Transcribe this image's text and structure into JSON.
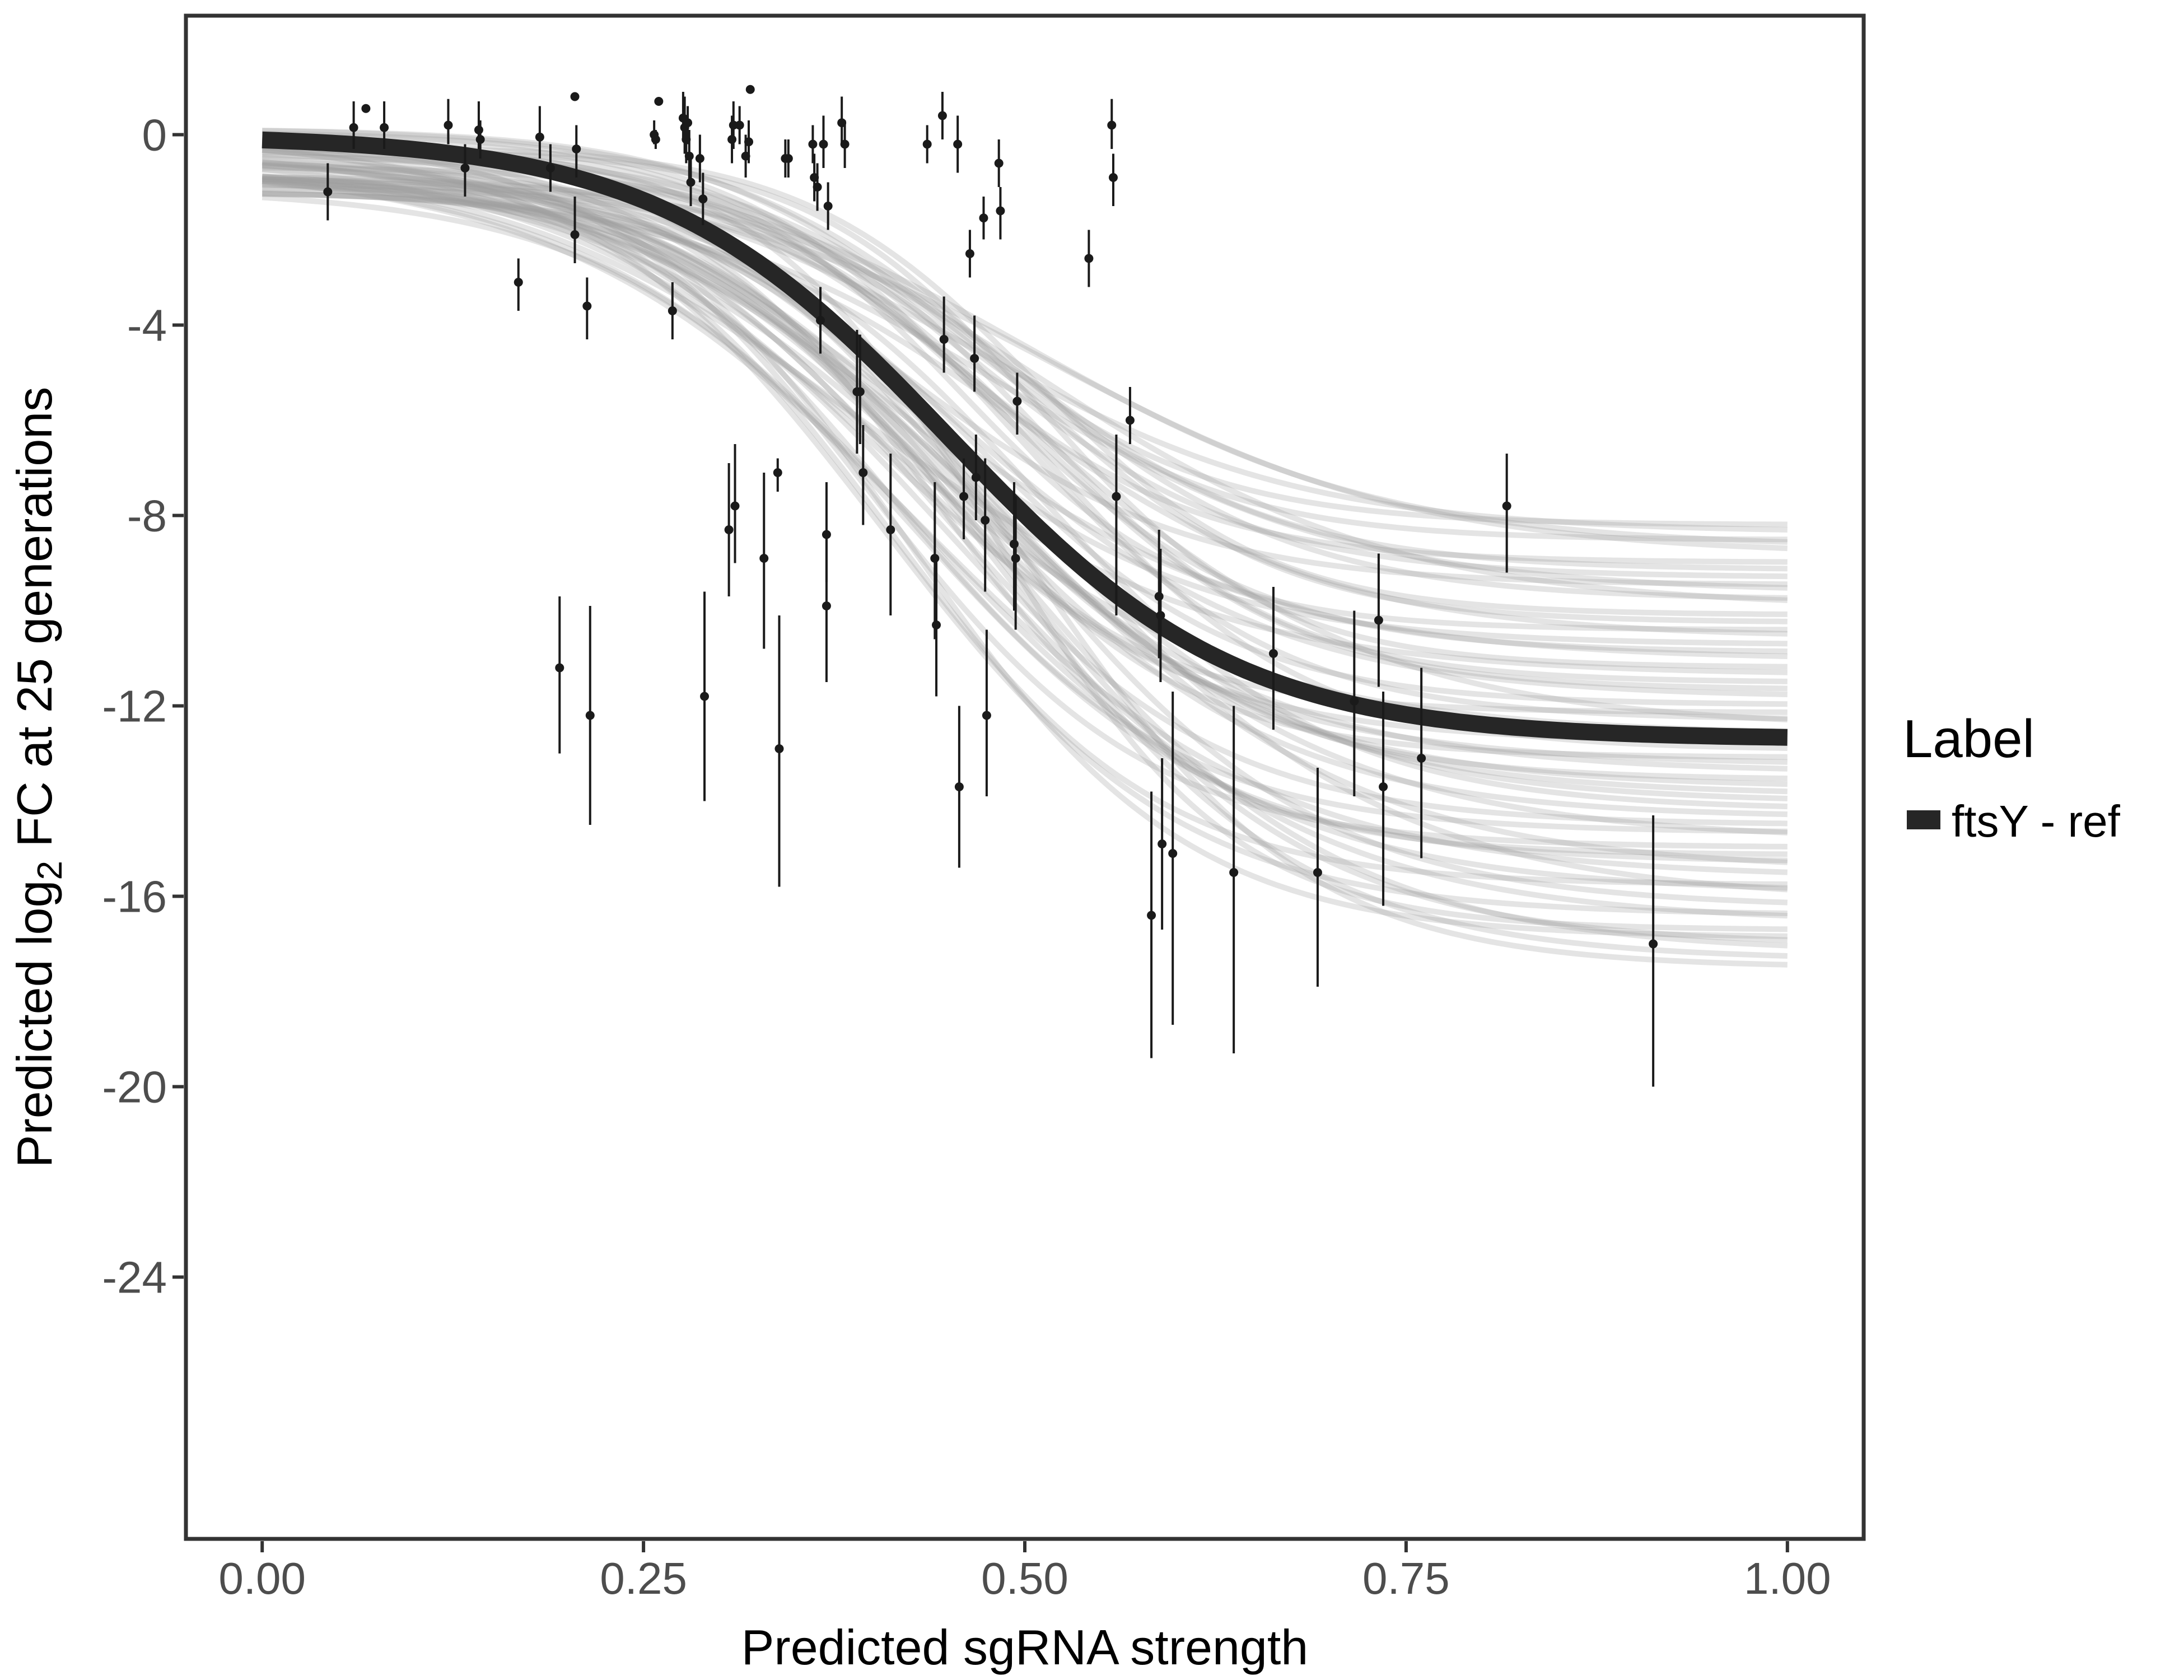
{
  "chart_data": {
    "type": "scatter",
    "xlabel": "Predicted sgRNA strength",
    "ylabel_parts": [
      "Predicted  log",
      "2",
      " FC at 25 generations"
    ],
    "xlim": [
      -0.05,
      1.05
    ],
    "ylim": [
      -29.5,
      2.5
    ],
    "x_ticks": [
      0,
      0.25,
      0.5,
      0.75,
      1
    ],
    "x_tick_labels": [
      "0.00",
      "0.25",
      "0.50",
      "0.75",
      "1.00"
    ],
    "y_ticks": [
      0,
      -4,
      -8,
      -12,
      -16,
      -20,
      -24
    ],
    "y_tick_labels": [
      "0",
      "-4",
      "-8",
      "-12",
      "-16",
      "-20",
      "-24"
    ],
    "grid": false,
    "legend": {
      "title": "Label",
      "position": "right",
      "entries": [
        {
          "label": "ftsY - ref",
          "color": "#262626"
        }
      ]
    },
    "fit_curve": {
      "name": "ftsY - ref",
      "model": "logistic",
      "lower": -12.7,
      "upper": 0,
      "midpoint": 0.45,
      "scale": 0.095,
      "color": "#262626"
    },
    "posterior_band": {
      "color": "#9e9e9e",
      "draws": 60,
      "lower_range": [
        -17.5,
        -8.2
      ],
      "upper_range": [
        -1.2,
        0.2
      ],
      "midpoint_range": [
        0.39,
        0.52
      ],
      "scale_range": [
        0.075,
        0.12
      ]
    },
    "points": [
      {
        "x": 0.043,
        "y": -1.2,
        "lo": -1.8,
        "hi": -0.6
      },
      {
        "x": 0.06,
        "y": 0.15,
        "lo": -0.3,
        "hi": 0.7
      },
      {
        "x": 0.068,
        "y": 0.55,
        "lo": 0.5,
        "hi": 0.6
      },
      {
        "x": 0.08,
        "y": 0.15,
        "lo": -0.3,
        "hi": 0.7
      },
      {
        "x": 0.122,
        "y": 0.2,
        "lo": -0.2,
        "hi": 0.75
      },
      {
        "x": 0.133,
        "y": -0.7,
        "lo": -1.3,
        "hi": -0.2
      },
      {
        "x": 0.142,
        "y": 0.1,
        "lo": -0.3,
        "hi": 0.7
      },
      {
        "x": 0.143,
        "y": -0.1,
        "lo": -0.5,
        "hi": 0.3
      },
      {
        "x": 0.168,
        "y": -3.1,
        "lo": -3.7,
        "hi": -2.6
      },
      {
        "x": 0.182,
        "y": -0.05,
        "lo": -0.5,
        "hi": 0.6
      },
      {
        "x": 0.189,
        "y": -0.7,
        "lo": -1.2,
        "hi": -0.2
      },
      {
        "x": 0.195,
        "y": -11.2,
        "lo": -13.0,
        "hi": -9.7
      },
      {
        "x": 0.205,
        "y": -2.1,
        "lo": -2.7,
        "hi": -1.3
      },
      {
        "x": 0.205,
        "y": 0.8,
        "lo": 0.75,
        "hi": 0.85
      },
      {
        "x": 0.206,
        "y": -0.3,
        "lo": -0.9,
        "hi": 0.2
      },
      {
        "x": 0.213,
        "y": -3.6,
        "lo": -4.3,
        "hi": -3.0
      },
      {
        "x": 0.215,
        "y": -12.2,
        "lo": -14.5,
        "hi": -9.9
      },
      {
        "x": 0.257,
        "y": 0.0,
        "lo": -0.2,
        "hi": 0.3
      },
      {
        "x": 0.258,
        "y": -0.1,
        "lo": -0.3,
        "hi": 0.1
      },
      {
        "x": 0.26,
        "y": 0.7,
        "lo": 0.65,
        "hi": 0.75
      },
      {
        "x": 0.269,
        "y": -3.7,
        "lo": -4.3,
        "hi": -3.1
      },
      {
        "x": 0.276,
        "y": 0.35,
        "lo": -0.1,
        "hi": 0.9
      },
      {
        "x": 0.277,
        "y": 0.15,
        "lo": -0.4,
        "hi": 0.8
      },
      {
        "x": 0.278,
        "y": -0.1,
        "lo": -0.6,
        "hi": 0.4
      },
      {
        "x": 0.279,
        "y": 0.25,
        "lo": -0.2,
        "hi": 0.6
      },
      {
        "x": 0.28,
        "y": -0.45,
        "lo": -1.0,
        "hi": 0.1
      },
      {
        "x": 0.281,
        "y": -1.0,
        "lo": -1.5,
        "hi": -0.5
      },
      {
        "x": 0.287,
        "y": -0.5,
        "lo": -1.0,
        "hi": 0.0
      },
      {
        "x": 0.289,
        "y": -1.35,
        "lo": -1.9,
        "hi": -0.8
      },
      {
        "x": 0.29,
        "y": -11.8,
        "lo": -14.0,
        "hi": -9.6
      },
      {
        "x": 0.306,
        "y": -8.3,
        "lo": -9.7,
        "hi": -6.9
      },
      {
        "x": 0.308,
        "y": -0.1,
        "lo": -0.6,
        "hi": 0.4
      },
      {
        "x": 0.309,
        "y": 0.2,
        "lo": -0.3,
        "hi": 0.7
      },
      {
        "x": 0.31,
        "y": -7.8,
        "lo": -9.0,
        "hi": -6.5
      },
      {
        "x": 0.313,
        "y": 0.2,
        "lo": -0.2,
        "hi": 0.6
      },
      {
        "x": 0.317,
        "y": -0.45,
        "lo": -0.9,
        "hi": 0.0
      },
      {
        "x": 0.319,
        "y": -0.15,
        "lo": -0.6,
        "hi": 0.3
      },
      {
        "x": 0.32,
        "y": 0.95,
        "lo": 0.9,
        "hi": 1.0
      },
      {
        "x": 0.329,
        "y": -8.9,
        "lo": -10.8,
        "hi": -7.1
      },
      {
        "x": 0.338,
        "y": -7.1,
        "lo": -7.5,
        "hi": -6.8
      },
      {
        "x": 0.339,
        "y": -12.9,
        "lo": -15.8,
        "hi": -10.1
      },
      {
        "x": 0.343,
        "y": -0.5,
        "lo": -0.9,
        "hi": -0.1
      },
      {
        "x": 0.345,
        "y": -0.5,
        "lo": -0.9,
        "hi": -0.1
      },
      {
        "x": 0.361,
        "y": -0.2,
        "lo": -0.6,
        "hi": 0.2
      },
      {
        "x": 0.362,
        "y": -0.9,
        "lo": -1.4,
        "hi": -0.4
      },
      {
        "x": 0.364,
        "y": -1.1,
        "lo": -1.6,
        "hi": -0.6
      },
      {
        "x": 0.366,
        "y": -3.9,
        "lo": -4.6,
        "hi": -3.2
      },
      {
        "x": 0.368,
        "y": -0.2,
        "lo": -0.7,
        "hi": 0.4
      },
      {
        "x": 0.37,
        "y": -8.4,
        "lo": -9.4,
        "hi": -7.3
      },
      {
        "x": 0.37,
        "y": -9.9,
        "lo": -11.5,
        "hi": -8.4
      },
      {
        "x": 0.371,
        "y": -1.5,
        "lo": -2.0,
        "hi": -1.0
      },
      {
        "x": 0.38,
        "y": 0.25,
        "lo": -0.2,
        "hi": 0.8
      },
      {
        "x": 0.382,
        "y": -0.2,
        "lo": -0.7,
        "hi": 0.3
      },
      {
        "x": 0.39,
        "y": -5.4,
        "lo": -6.7,
        "hi": -4.1
      },
      {
        "x": 0.392,
        "y": -5.4,
        "lo": -6.5,
        "hi": -4.2
      },
      {
        "x": 0.394,
        "y": -7.1,
        "lo": -8.2,
        "hi": -6.1
      },
      {
        "x": 0.412,
        "y": -8.3,
        "lo": -10.1,
        "hi": -6.7
      },
      {
        "x": 0.436,
        "y": -0.2,
        "lo": -0.6,
        "hi": 0.2
      },
      {
        "x": 0.441,
        "y": -8.9,
        "lo": -10.6,
        "hi": -7.3
      },
      {
        "x": 0.442,
        "y": -10.3,
        "lo": -11.8,
        "hi": -8.9
      },
      {
        "x": 0.446,
        "y": 0.4,
        "lo": -0.1,
        "hi": 0.9
      },
      {
        "x": 0.447,
        "y": -4.3,
        "lo": -5.0,
        "hi": -3.4
      },
      {
        "x": 0.456,
        "y": -0.2,
        "lo": -0.8,
        "hi": 0.4
      },
      {
        "x": 0.457,
        "y": -13.7,
        "lo": -15.4,
        "hi": -12.0
      },
      {
        "x": 0.46,
        "y": -7.6,
        "lo": -8.5,
        "hi": -6.8
      },
      {
        "x": 0.464,
        "y": -2.5,
        "lo": -3.0,
        "hi": -2.0
      },
      {
        "x": 0.467,
        "y": -4.7,
        "lo": -5.4,
        "hi": -3.8
      },
      {
        "x": 0.468,
        "y": -7.2,
        "lo": -8.1,
        "hi": -6.3
      },
      {
        "x": 0.473,
        "y": -1.75,
        "lo": -2.2,
        "hi": -1.3
      },
      {
        "x": 0.474,
        "y": -8.1,
        "lo": -9.6,
        "hi": -6.8
      },
      {
        "x": 0.475,
        "y": -12.2,
        "lo": -13.9,
        "hi": -10.4
      },
      {
        "x": 0.483,
        "y": -0.6,
        "lo": -1.1,
        "hi": -0.1
      },
      {
        "x": 0.484,
        "y": -1.6,
        "lo": -2.2,
        "hi": -1.1
      },
      {
        "x": 0.493,
        "y": -8.6,
        "lo": -10.0,
        "hi": -7.3
      },
      {
        "x": 0.494,
        "y": -8.9,
        "lo": -10.4,
        "hi": -7.6
      },
      {
        "x": 0.495,
        "y": -5.6,
        "lo": -6.3,
        "hi": -5.0
      },
      {
        "x": 0.542,
        "y": -2.6,
        "lo": -3.2,
        "hi": -2.0
      },
      {
        "x": 0.557,
        "y": 0.2,
        "lo": -0.3,
        "hi": 0.75
      },
      {
        "x": 0.558,
        "y": -0.9,
        "lo": -1.5,
        "hi": -0.4
      },
      {
        "x": 0.56,
        "y": -7.6,
        "lo": -10.1,
        "hi": -6.3
      },
      {
        "x": 0.569,
        "y": -6.0,
        "lo": -6.5,
        "hi": -5.3
      },
      {
        "x": 0.583,
        "y": -16.4,
        "lo": -19.4,
        "hi": -13.8
      },
      {
        "x": 0.588,
        "y": -9.7,
        "lo": -11.0,
        "hi": -8.3
      },
      {
        "x": 0.589,
        "y": -10.1,
        "lo": -11.5,
        "hi": -8.7
      },
      {
        "x": 0.59,
        "y": -14.9,
        "lo": -16.7,
        "hi": -13.1
      },
      {
        "x": 0.597,
        "y": -15.1,
        "lo": -18.7,
        "hi": -11.7
      },
      {
        "x": 0.637,
        "y": -15.5,
        "lo": -19.3,
        "hi": -12.0
      },
      {
        "x": 0.663,
        "y": -10.9,
        "lo": -12.5,
        "hi": -9.5
      },
      {
        "x": 0.692,
        "y": -15.5,
        "lo": -17.9,
        "hi": -13.3
      },
      {
        "x": 0.716,
        "y": -11.9,
        "lo": -13.9,
        "hi": -10.0
      },
      {
        "x": 0.732,
        "y": -10.2,
        "lo": -11.6,
        "hi": -8.8
      },
      {
        "x": 0.735,
        "y": -13.7,
        "lo": -16.2,
        "hi": -11.7
      },
      {
        "x": 0.76,
        "y": -13.1,
        "lo": -15.2,
        "hi": -11.2
      },
      {
        "x": 0.816,
        "y": -7.8,
        "lo": -9.2,
        "hi": -6.7
      },
      {
        "x": 0.912,
        "y": -17.0,
        "lo": -20.0,
        "hi": -14.3
      }
    ]
  }
}
